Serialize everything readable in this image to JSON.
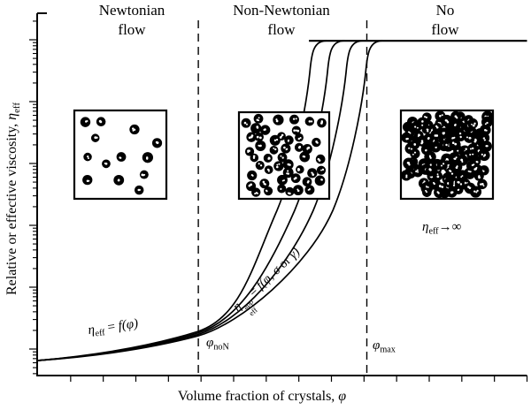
{
  "figure_type": "schematic viscosity chart",
  "colors": {
    "ink": "#000000",
    "background": "#ffffff"
  },
  "regions": [
    {
      "line1": "Newtonian",
      "line2": "flow"
    },
    {
      "line1": "Non-Newtonian",
      "line2": "flow"
    },
    {
      "line1": "No",
      "line2": "flow"
    }
  ],
  "axes": {
    "x_label_text": "Volume fraction of crystals, ",
    "x_label_symbol": "φ",
    "y_label_text": "Relative or effective viscosity, ",
    "y_label_symbol": "η",
    "y_label_subscript": "eff"
  },
  "annotations": {
    "newtonian_law": {
      "eta": "η",
      "sub": "eff",
      "eq": " = ",
      "fpart": "f(φ)"
    },
    "apparent_law": {
      "eta": "η",
      "sup": "app",
      "sub": "eff",
      "eq": " = ",
      "fpart": "f(φ, σ",
      "orword": " or ",
      "gpart": "γ̇)"
    },
    "infinite_viscosity": {
      "eta": "η",
      "sub": "eff",
      "arrow": "→",
      "infinity": "∞"
    },
    "phi_non": {
      "phi": "φ",
      "sub": "noN"
    },
    "phi_max": {
      "phi": "φ",
      "sub": "max"
    }
  },
  "insets": [
    {
      "name": "dilute crystal suspension",
      "particle_count": 13
    },
    {
      "name": "intermediate crystal content",
      "particle_count": 48
    },
    {
      "name": "densely packed crystals",
      "particle_count": 110
    }
  ],
  "chart_data": {
    "type": "line",
    "title": "",
    "xlabel": "Volume fraction of crystals, φ",
    "ylabel": "Relative or effective viscosity, η_eff",
    "x_axis": {
      "scale": "linear",
      "tick_labels_shown": false,
      "tick_count": 15
    },
    "y_axis": {
      "scale": "log",
      "tick_labels_shown": false,
      "decades": 6
    },
    "legend": false,
    "region_boundaries": [
      {
        "label": "φ_noN",
        "x_frac": 0.329
      },
      {
        "label": "φ_max",
        "x_frac": 0.673
      }
    ],
    "regions": [
      {
        "label": "Newtonian flow",
        "x_frac_range": [
          0,
          0.329
        ]
      },
      {
        "label": "Non-Newtonian flow",
        "x_frac_range": [
          0.329,
          0.673
        ]
      },
      {
        "label": "No flow",
        "x_frac_range": [
          0.673,
          1
        ]
      }
    ],
    "common_branch_points_frac": [
      [
        0.0,
        0.04
      ],
      [
        0.08,
        0.055
      ],
      [
        0.16,
        0.075
      ],
      [
        0.24,
        0.1
      ],
      [
        0.329,
        0.125
      ]
    ],
    "series": [
      {
        "name": "apparent viscosity curve 1",
        "divergence_x_frac": 0.562
      },
      {
        "name": "apparent viscosity curve 2",
        "divergence_x_frac": 0.598
      },
      {
        "name": "apparent viscosity curve 3",
        "divergence_x_frac": 0.636
      },
      {
        "name": "apparent viscosity curve 4",
        "divergence_x_frac": 0.676
      }
    ],
    "plateau_y_frac": 0.924,
    "annotations": [
      "η_eff = f(φ)",
      "η_eff^app = f(φ, σ or γ̇)",
      "η_eff→∞",
      "φ_noN",
      "φ_max"
    ]
  }
}
